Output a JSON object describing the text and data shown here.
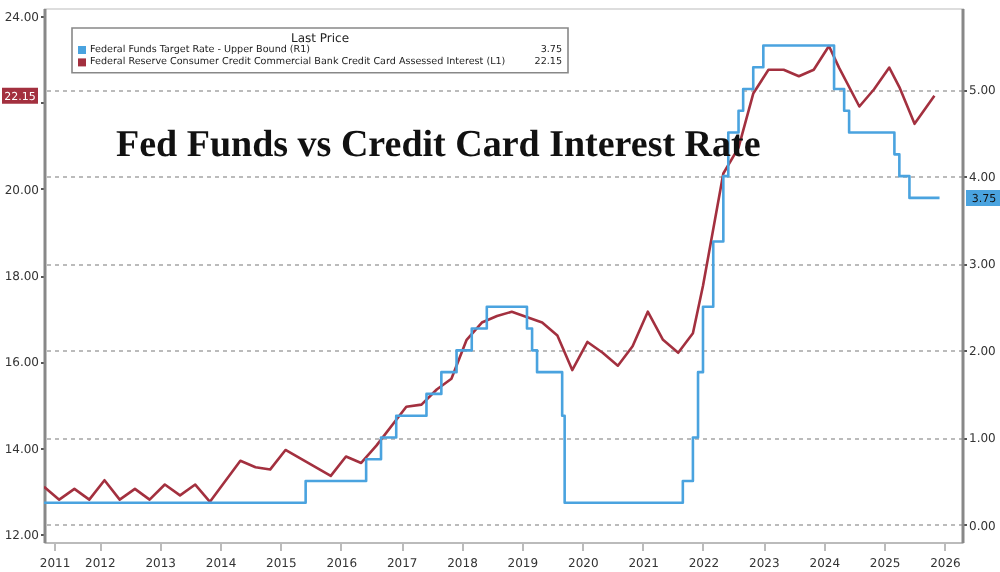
{
  "chart_data": {
    "type": "line",
    "title": "Fed Funds vs Credit Card Interest Rate",
    "legend_title": "Last Price",
    "legend": "top left",
    "grid": "y",
    "annotations": [
      "22.15",
      "3.75"
    ],
    "xlim": [
      "2011-08-01",
      "2026-10-15"
    ],
    "xticks": [
      {
        "value": "2011-10-01",
        "label": "2011"
      },
      {
        "value": "2012-07-01",
        "label": "2012"
      },
      {
        "value": "2013-07-01",
        "label": "2013"
      },
      {
        "value": "2014-07-01",
        "label": "2014"
      },
      {
        "value": "2015-07-01",
        "label": "2015"
      },
      {
        "value": "2016-07-01",
        "label": "2016"
      },
      {
        "value": "2017-07-01",
        "label": "2017"
      },
      {
        "value": "2018-07-01",
        "label": "2018"
      },
      {
        "value": "2019-07-01",
        "label": "2019"
      },
      {
        "value": "2020-07-01",
        "label": "2020"
      },
      {
        "value": "2021-07-01",
        "label": "2021"
      },
      {
        "value": "2022-07-01",
        "label": "2022"
      },
      {
        "value": "2023-07-01",
        "label": "2023"
      },
      {
        "value": "2024-07-01",
        "label": "2024"
      },
      {
        "value": "2025-07-01",
        "label": "2025"
      },
      {
        "value": "2026-07-01",
        "label": "2026"
      }
    ],
    "ylim": [
      11.82,
      24.18
    ],
    "yticks": [
      {
        "value": 12,
        "label": "12.00"
      },
      {
        "value": 14,
        "label": "14.00"
      },
      {
        "value": 16,
        "label": "16.00"
      },
      {
        "value": 18,
        "label": "18.00"
      },
      {
        "value": 20,
        "label": "20.00"
      },
      {
        "value": 22,
        "label": null
      },
      {
        "value": 24,
        "label": "24.00"
      }
    ],
    "y2lim": [
      -0.2,
      5.93
    ],
    "y2ticks": [
      {
        "value": 0,
        "label": "0.00"
      },
      {
        "value": 1,
        "label": "1.00"
      },
      {
        "value": 2,
        "label": "2.00"
      },
      {
        "value": 3,
        "label": "3.00"
      },
      {
        "value": 4,
        "label": "4.00"
      },
      {
        "value": 5,
        "label": "5.00"
      }
    ],
    "series": [
      {
        "name": "Federal Funds Target Rate - Upper Bound  (R1)",
        "color": "#4aa3df",
        "type": "step",
        "axis": "y2",
        "x": [
          "2011-08",
          "2015-12",
          "2016-12",
          "2017-03",
          "2017-06",
          "2017-12",
          "2018-03",
          "2018-06",
          "2018-09",
          "2018-12",
          "2019-08",
          "2019-09",
          "2019-10",
          "2020-03",
          "2020-03-16",
          "2022-03",
          "2022-05",
          "2022-06",
          "2022-07",
          "2022-09",
          "2022-11",
          "2022-12",
          "2023-02",
          "2023-03",
          "2023-05",
          "2023-07",
          "2024-09",
          "2024-11",
          "2024-12",
          "2025-09",
          "2025-10",
          "2025-12",
          "2026-06"
        ],
        "values": [
          0.25,
          0.5,
          0.75,
          1.0,
          1.25,
          1.5,
          1.75,
          2.0,
          2.25,
          2.5,
          2.25,
          2.0,
          1.75,
          1.25,
          0.25,
          0.5,
          1.0,
          1.75,
          2.5,
          3.25,
          4.0,
          4.5,
          4.75,
          5.0,
          5.25,
          5.5,
          5.0,
          4.75,
          4.5,
          4.25,
          4.0,
          3.75,
          3.75
        ]
      },
      {
        "name": "Federal Reserve Consumer Credit Commercial Bank Credit Card Assessed Interest  (L1)",
        "color": "#a3303f",
        "axis": "y",
        "x": [
          "2011-08",
          "2011-11",
          "2012-02",
          "2012-05",
          "2012-08",
          "2012-11",
          "2013-02",
          "2013-05",
          "2013-08",
          "2013-11",
          "2014-02",
          "2014-05",
          "2014-11",
          "2015-02",
          "2015-05",
          "2015-08",
          "2016-05",
          "2016-08",
          "2016-11",
          "2017-02",
          "2017-08",
          "2017-11",
          "2018-02",
          "2018-05",
          "2018-08",
          "2018-11",
          "2019-02",
          "2019-05",
          "2019-11",
          "2020-02",
          "2020-05",
          "2020-08",
          "2020-11",
          "2021-02",
          "2021-05",
          "2021-08",
          "2021-11",
          "2022-02",
          "2022-05",
          "2022-07",
          "2022-11",
          "2023-02",
          "2023-05",
          "2023-08",
          "2023-11",
          "2024-02",
          "2024-05",
          "2024-08",
          "2024-10",
          "2025-02",
          "2025-05",
          "2025-08",
          "2025-10",
          "2026-01",
          "2026-05"
        ],
        "values": [
          13.1,
          12.8,
          13.05,
          12.8,
          13.25,
          12.8,
          13.05,
          12.8,
          13.15,
          12.9,
          13.15,
          12.75,
          13.7,
          13.55,
          13.5,
          13.95,
          13.35,
          13.8,
          13.65,
          14.05,
          14.95,
          15.0,
          15.35,
          15.6,
          16.5,
          16.9,
          17.05,
          17.15,
          16.9,
          16.6,
          15.8,
          16.45,
          16.2,
          15.9,
          16.35,
          17.15,
          16.5,
          16.2,
          16.65,
          17.75,
          20.35,
          20.95,
          22.2,
          22.75,
          22.75,
          22.6,
          22.75,
          23.3,
          22.8,
          21.9,
          22.3,
          22.8,
          22.35,
          21.5,
          22.15
        ]
      }
    ]
  }
}
